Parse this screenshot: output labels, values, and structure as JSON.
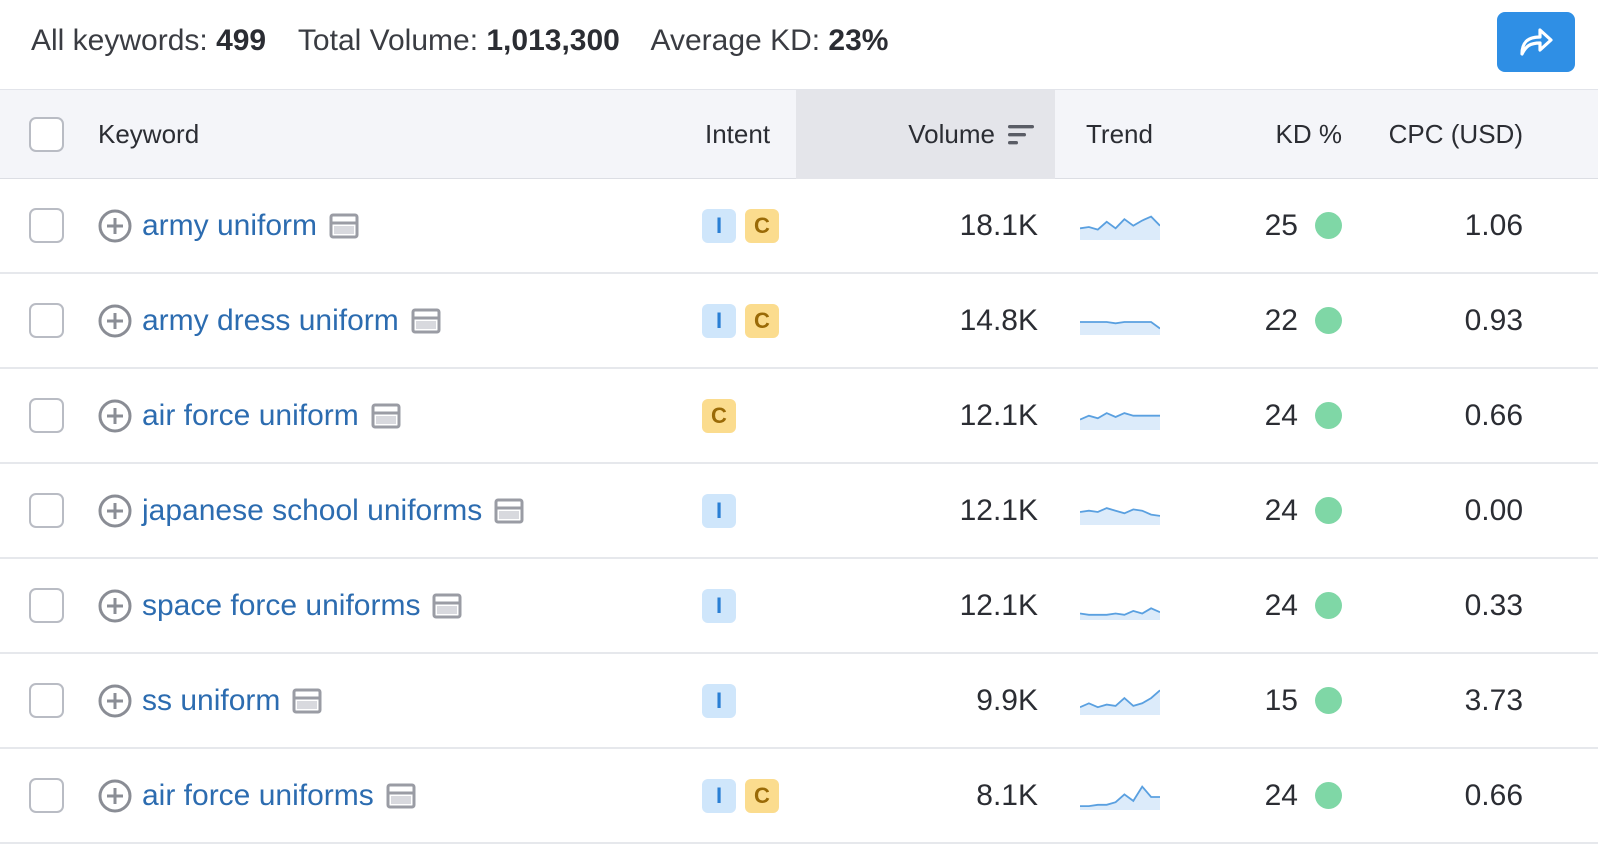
{
  "summary": {
    "all_keywords_label": "All keywords:",
    "all_keywords_value": "499",
    "total_volume_label": "Total Volume:",
    "total_volume_value": "1,013,300",
    "avg_kd_label": "Average KD:",
    "avg_kd_value": "23%"
  },
  "export_button": {
    "icon": "share-forward-icon"
  },
  "columns": {
    "keyword": "Keyword",
    "intent": "Intent",
    "volume": "Volume",
    "trend": "Trend",
    "kd": "KD %",
    "cpc": "CPC (USD)"
  },
  "rows": [
    {
      "keyword": "army uniform",
      "intents": [
        "I",
        "C"
      ],
      "volume": "18.1K",
      "kd": "25",
      "cpc": "1.06",
      "trend": [
        0.55,
        0.5,
        0.6,
        0.3,
        0.55,
        0.2,
        0.45,
        0.25,
        0.1,
        0.45
      ]
    },
    {
      "keyword": "army dress uniform",
      "intents": [
        "I",
        "C"
      ],
      "volume": "14.8K",
      "kd": "22",
      "cpc": "0.93",
      "trend": [
        0.5,
        0.5,
        0.5,
        0.5,
        0.55,
        0.5,
        0.5,
        0.5,
        0.5,
        0.75
      ]
    },
    {
      "keyword": "air force uniform",
      "intents": [
        "C"
      ],
      "volume": "12.1K",
      "kd": "24",
      "cpc": "0.66",
      "trend": [
        0.6,
        0.45,
        0.55,
        0.35,
        0.5,
        0.35,
        0.45,
        0.45,
        0.45,
        0.45
      ]
    },
    {
      "keyword": "japanese school uniforms",
      "intents": [
        "I"
      ],
      "volume": "12.1K",
      "kd": "24",
      "cpc": "0.00",
      "trend": [
        0.5,
        0.45,
        0.5,
        0.35,
        0.45,
        0.55,
        0.4,
        0.45,
        0.6,
        0.65
      ]
    },
    {
      "keyword": "space force uniforms",
      "intents": [
        "I"
      ],
      "volume": "12.1K",
      "kd": "24",
      "cpc": "0.33",
      "trend": [
        0.75,
        0.8,
        0.8,
        0.8,
        0.75,
        0.8,
        0.65,
        0.75,
        0.55,
        0.7
      ]
    },
    {
      "keyword": "ss uniform",
      "intents": [
        "I"
      ],
      "volume": "9.9K",
      "kd": "15",
      "cpc": "3.73",
      "trend": [
        0.7,
        0.55,
        0.7,
        0.6,
        0.65,
        0.35,
        0.65,
        0.55,
        0.35,
        0.05
      ]
    },
    {
      "keyword": "air force uniforms",
      "intents": [
        "I",
        "C"
      ],
      "volume": "8.1K",
      "kd": "24",
      "cpc": "0.66",
      "trend": [
        0.85,
        0.85,
        0.8,
        0.8,
        0.7,
        0.4,
        0.65,
        0.1,
        0.5,
        0.5
      ]
    }
  ],
  "colors": {
    "link": "#2c6cb0",
    "intent_i_bg": "#cfe6fb",
    "intent_c_bg": "#fbdc8e",
    "kd_dot": "#7fd7a6",
    "export_button": "#2f8fe5"
  }
}
